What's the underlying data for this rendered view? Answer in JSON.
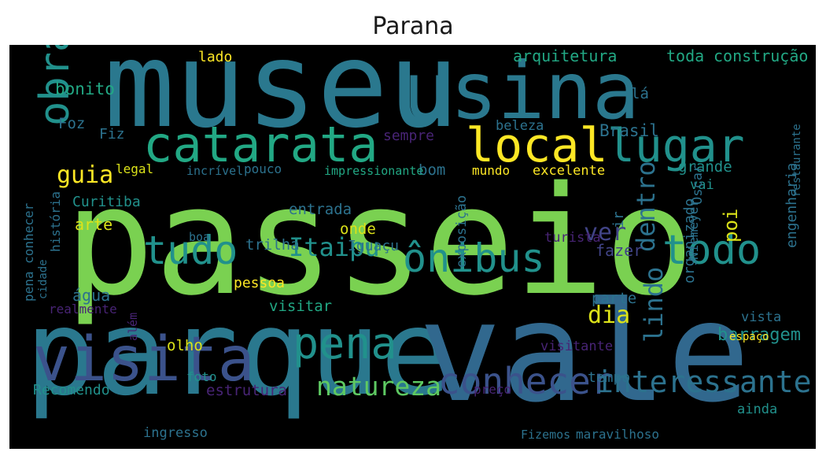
{
  "chart_data": {
    "type": "wordcloud",
    "title": "Parana",
    "background": "#000000",
    "words": [
      {
        "text": "passeio",
        "weight": 1.0,
        "color": "#7ad151"
      },
      {
        "text": "museu",
        "weight": 0.85,
        "color": "#2a788e"
      },
      {
        "text": "parque",
        "weight": 0.8,
        "color": "#2a788e"
      },
      {
        "text": "vale",
        "weight": 0.82,
        "color": "#31688e"
      },
      {
        "text": "usina",
        "weight": 0.6,
        "color": "#2a788e"
      },
      {
        "text": "visita",
        "weight": 0.5,
        "color": "#3b528b"
      },
      {
        "text": "catarata",
        "weight": 0.45,
        "color": "#22a884"
      },
      {
        "text": "local",
        "weight": 0.42,
        "color": "#fde725"
      },
      {
        "text": "lugar",
        "weight": 0.4,
        "color": "#21918c"
      },
      {
        "text": "pena",
        "weight": 0.38,
        "color": "#21918c"
      },
      {
        "text": "todo",
        "weight": 0.35,
        "color": "#21918c"
      },
      {
        "text": "tudo",
        "weight": 0.33,
        "color": "#21918c"
      },
      {
        "text": "ônibus",
        "weight": 0.33,
        "color": "#21918c"
      },
      {
        "text": "conhecer",
        "weight": 0.3,
        "color": "#3b528b"
      },
      {
        "text": "obra",
        "weight": 0.3,
        "color": "#21918c"
      },
      {
        "text": "interessante",
        "weight": 0.26,
        "color": "#2c728e"
      },
      {
        "text": "natureza",
        "weight": 0.22,
        "color": "#5ec962"
      },
      {
        "text": "Itaipu",
        "weight": 0.22,
        "color": "#21918c"
      },
      {
        "text": "lindo",
        "weight": 0.21,
        "color": "#2c728e"
      },
      {
        "text": "dentro",
        "weight": 0.21,
        "color": "#2c728e"
      },
      {
        "text": "guia",
        "weight": 0.2,
        "color": "#fde725"
      },
      {
        "text": "ver",
        "weight": 0.2,
        "color": "#414487"
      },
      {
        "text": "dia",
        "weight": 0.19,
        "color": "#dce319"
      },
      {
        "text": "barragem",
        "weight": 0.16,
        "color": "#21918c"
      },
      {
        "text": "Recomendo",
        "weight": 0.14,
        "color": "#21918c"
      },
      {
        "text": "estrutura",
        "weight": 0.14,
        "color": "#482475"
      },
      {
        "text": "Brasil",
        "weight": 0.14,
        "color": "#2c728e"
      },
      {
        "text": "engenharia",
        "weight": 0.14,
        "color": "#2c728e"
      },
      {
        "text": "arquitetura",
        "weight": 0.14,
        "color": "#22a884"
      },
      {
        "text": "construção",
        "weight": 0.14,
        "color": "#22a884"
      },
      {
        "text": "toda",
        "weight": 0.14,
        "color": "#22a884"
      },
      {
        "text": "bonito",
        "weight": 0.14,
        "color": "#22a884"
      },
      {
        "text": "lá",
        "weight": 0.14,
        "color": "#2c728e"
      },
      {
        "text": "Foz",
        "weight": 0.13,
        "color": "#2c728e"
      },
      {
        "text": "Fiz",
        "weight": 0.13,
        "color": "#2c728e"
      },
      {
        "text": "lado",
        "weight": 0.12,
        "color": "#fde725"
      },
      {
        "text": "beleza",
        "weight": 0.12,
        "color": "#2c728e"
      },
      {
        "text": "sempre",
        "weight": 0.13,
        "color": "#482475"
      },
      {
        "text": "bom",
        "weight": 0.13,
        "color": "#2c728e"
      },
      {
        "text": "mundo",
        "weight": 0.11,
        "color": "#fde725"
      },
      {
        "text": "excelente",
        "weight": 0.13,
        "color": "#fde725"
      },
      {
        "text": "grande",
        "weight": 0.13,
        "color": "#21918c"
      },
      {
        "text": "vai",
        "weight": 0.11,
        "color": "#21918c"
      },
      {
        "text": "poi",
        "weight": 0.16,
        "color": "#dce319"
      },
      {
        "text": "ir",
        "weight": 0.12,
        "color": "#2c728e"
      },
      {
        "text": "fazer",
        "weight": 0.13,
        "color": "#414487"
      },
      {
        "text": "Curitiba",
        "weight": 0.13,
        "color": "#21918c"
      },
      {
        "text": "arte",
        "weight": 0.14,
        "color": "#dce319"
      },
      {
        "text": "trilha",
        "weight": 0.15,
        "color": "#2c728e"
      },
      {
        "text": "entrada",
        "weight": 0.14,
        "color": "#2c728e"
      },
      {
        "text": "onde",
        "weight": 0.14,
        "color": "#dce319"
      },
      {
        "text": "Iguaçu",
        "weight": 0.13,
        "color": "#2c728e"
      },
      {
        "text": "pouco",
        "weight": 0.12,
        "color": "#2c728e"
      },
      {
        "text": "legal",
        "weight": 0.11,
        "color": "#dce319"
      },
      {
        "text": "incrível",
        "weight": 0.12,
        "color": "#2c728e"
      },
      {
        "text": "impressionante",
        "weight": 0.12,
        "color": "#22a884"
      },
      {
        "text": "boa",
        "weight": 0.11,
        "color": "#2c728e"
      },
      {
        "text": "água",
        "weight": 0.14,
        "color": "#2c728e"
      },
      {
        "text": "pessoa",
        "weight": 0.13,
        "color": "#fde725"
      },
      {
        "text": "visitar",
        "weight": 0.15,
        "color": "#22a884"
      },
      {
        "text": "exposição",
        "weight": 0.13,
        "color": "#2c728e"
      },
      {
        "text": "turista",
        "weight": 0.13,
        "color": "#482475"
      },
      {
        "text": "parte",
        "weight": 0.13,
        "color": "#2c728e"
      },
      {
        "text": "visitante",
        "weight": 0.12,
        "color": "#482475"
      },
      {
        "text": "tempo",
        "weight": 0.13,
        "color": "#2c728e"
      },
      {
        "text": "preço",
        "weight": 0.11,
        "color": "#482475"
      },
      {
        "text": "olho",
        "weight": 0.13,
        "color": "#dce319"
      },
      {
        "text": "foto",
        "weight": 0.12,
        "color": "#21918c"
      },
      {
        "text": "ingresso",
        "weight": 0.12,
        "color": "#2c728e"
      },
      {
        "text": "organizado",
        "weight": 0.13,
        "color": "#2c728e"
      },
      {
        "text": "Oscar",
        "weight": 0.13,
        "color": "#2c728e"
      },
      {
        "text": "Niemeyer",
        "weight": 0.12,
        "color": "#2c728e"
      },
      {
        "text": "Fizemos",
        "weight": 0.13,
        "color": "#2c728e"
      },
      {
        "text": "maravilhoso",
        "weight": 0.13,
        "color": "#2c728e"
      },
      {
        "text": "ainda",
        "weight": 0.12,
        "color": "#21918c"
      },
      {
        "text": "espaço",
        "weight": 0.1,
        "color": "#fde725"
      },
      {
        "text": "vista",
        "weight": 0.12,
        "color": "#2c728e"
      },
      {
        "text": "história",
        "weight": 0.12,
        "color": "#2c728e"
      },
      {
        "text": "cidade",
        "weight": 0.1,
        "color": "#2c728e"
      },
      {
        "text": "realmente",
        "weight": 0.11,
        "color": "#482475"
      },
      {
        "text": "além",
        "weight": 0.11,
        "color": "#482475"
      },
      {
        "text": "pena conhecer",
        "weight": 0.11,
        "color": "#2c728e"
      },
      {
        "text": "restaurante",
        "weight": 0.11,
        "color": "#2c728e"
      }
    ]
  }
}
